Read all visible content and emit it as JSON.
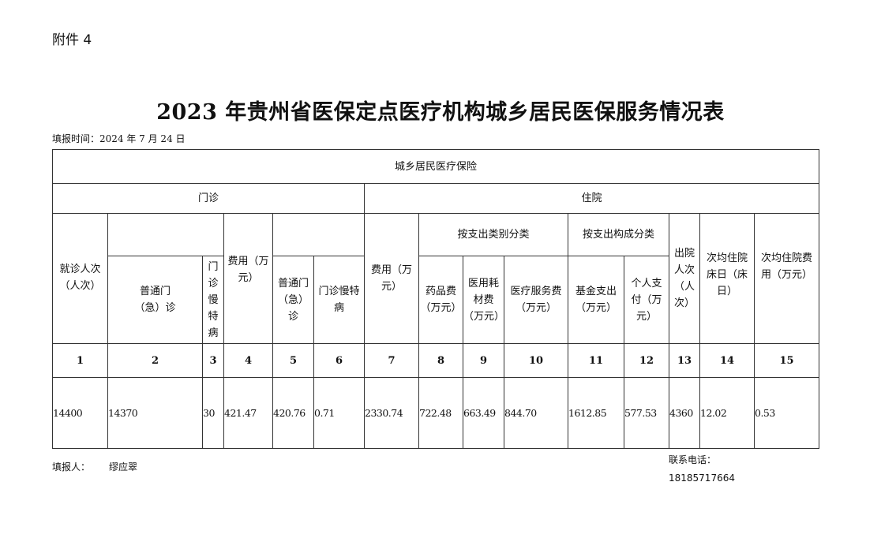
{
  "attachment_label": "附件 4",
  "title": "2023 年贵州省医保定点医疗机构城乡居民医保服务情况表",
  "fill_date": "填报时间：2024 年 7 月 24 日",
  "table": {
    "top_header": "城乡居民医疗保险",
    "outpatient": "门诊",
    "inpatient": "住院",
    "by_category": "按支出类别分类",
    "by_composition": "按支出构成分类",
    "columns": [
      "就诊人次（人次）",
      "普通门（急）诊",
      "门诊慢特病",
      "费用（万元）",
      "普通门（急）诊",
      "门诊慢特病",
      "费用（万元）",
      "药品费（万元）",
      "医用耗材费（万元）",
      "医疗服务费（万元）",
      "基金支出（万元）",
      "个人支付（万元）",
      "出院人次（人次）",
      "次均住院床日（床日）",
      "次均住院费用（万元）"
    ],
    "numbers": [
      "1",
      "2",
      "3",
      "4",
      "5",
      "6",
      "7",
      "8",
      "9",
      "10",
      "11",
      "12",
      "13",
      "14",
      "15"
    ],
    "values": [
      "14400",
      "14370",
      "30",
      "421.47",
      "420.76",
      "0.71",
      "2330.74",
      "722.48",
      "663.49",
      "844.70",
      "1612.85",
      "577.53",
      "4360",
      "12.02",
      "0.53"
    ]
  },
  "filler_label": "填报人：",
  "filler_name": "缪应翠",
  "contact_label": "联系电话：",
  "contact_phone": "18185717664"
}
